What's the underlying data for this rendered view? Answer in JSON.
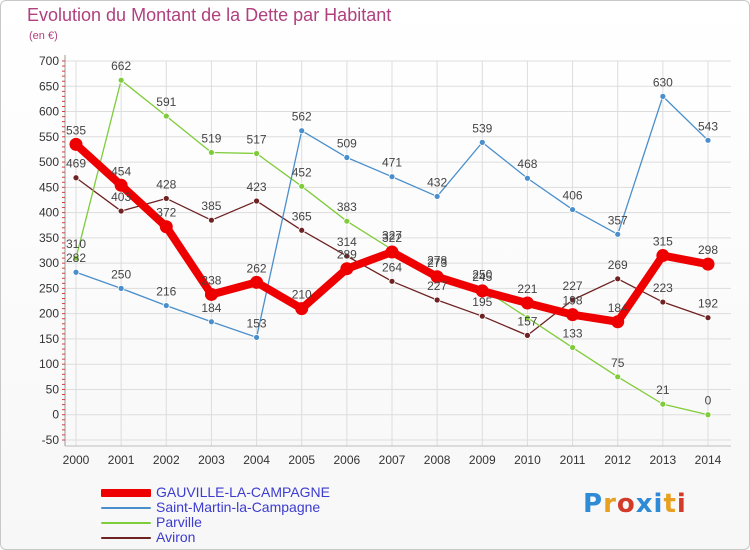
{
  "title": "Evolution du Montant de la Dette par Habitant",
  "subtitle": "(en €)",
  "brand": {
    "letters": [
      "P",
      "r",
      "o",
      "x",
      "i",
      "t",
      "i"
    ],
    "colors": [
      "#2f8bd6",
      "#e8a020",
      "#d23a2a",
      "#2f8bd6",
      "#2f8bd6",
      "#e8a020",
      "#d23a2a"
    ]
  },
  "chart_data": {
    "type": "line",
    "x": [
      "2000",
      "2001",
      "2002",
      "2003",
      "2004",
      "2005",
      "2006",
      "2007",
      "2008",
      "2009",
      "2010",
      "2011",
      "2012",
      "2013",
      "2014"
    ],
    "ylim": [
      -50,
      700
    ],
    "yticks": [
      "-50",
      "0",
      "50",
      "100",
      "150",
      "200",
      "250",
      "300",
      "350",
      "400",
      "450",
      "500",
      "550",
      "600",
      "650",
      "700"
    ],
    "grid": true,
    "legend_position": "bottom",
    "series": [
      {
        "name": "Aviron",
        "color": "#6e2222",
        "values": [
          469,
          403,
          428,
          385,
          423,
          365,
          314,
          264,
          227,
          195,
          157,
          227,
          269,
          223,
          192
        ],
        "labels": [
          "469",
          "403",
          "428",
          "385",
          "423",
          "365",
          "314",
          "264",
          "227",
          "195",
          "157",
          "227",
          "269",
          "223",
          "192"
        ]
      },
      {
        "name": "Parville",
        "color": "#7fcc3a",
        "values": [
          310,
          662,
          591,
          519,
          517,
          452,
          383,
          327,
          278,
          250,
          192,
          133,
          75,
          21,
          0
        ],
        "labels": [
          "310",
          "662",
          "591",
          "519",
          "517",
          "452",
          "383",
          "327",
          "278",
          "250",
          "",
          "133",
          "75",
          "21",
          "0"
        ]
      },
      {
        "name": "Saint-Martin-la-Campagne",
        "color": "#4a8fcb",
        "values": [
          282,
          250,
          216,
          184,
          153,
          562,
          509,
          471,
          432,
          539,
          468,
          406,
          357,
          630,
          543
        ],
        "labels": [
          "282",
          "250",
          "216",
          "184",
          "153",
          "562",
          "509",
          "471",
          "432",
          "539",
          "468",
          "406",
          "357",
          "630",
          "543"
        ]
      },
      {
        "name": "GAUVILLE-LA-CAMPAGNE",
        "color": "#ee0000",
        "values": [
          535,
          454,
          372,
          238,
          262,
          210,
          289,
          322,
          273,
          245,
          221,
          198,
          184,
          315,
          298
        ],
        "labels": [
          "535",
          "454",
          "372",
          "238",
          "262",
          "210",
          "289",
          "322",
          "273",
          "245",
          "221",
          "198",
          "184",
          "315",
          "298"
        ]
      }
    ]
  }
}
